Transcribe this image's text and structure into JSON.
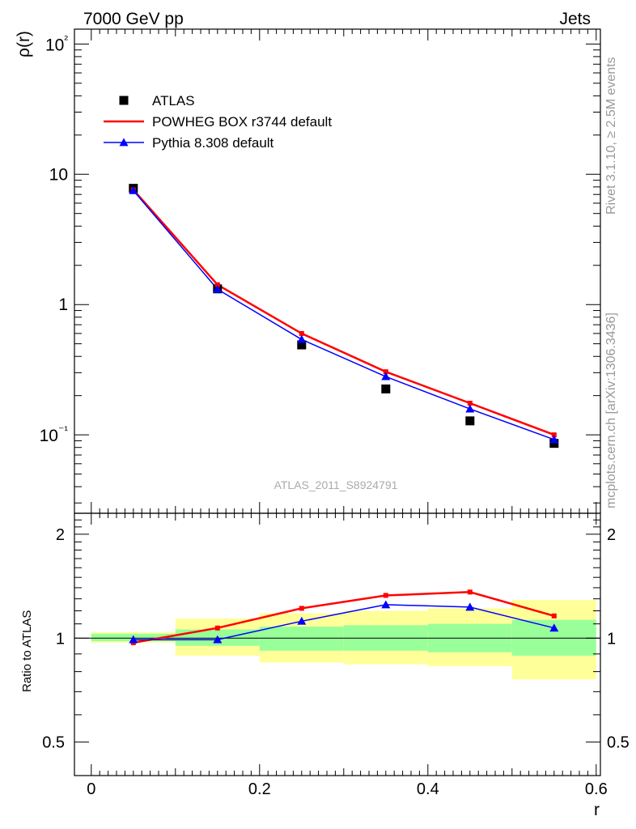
{
  "header": {
    "left_title": "7000 GeV pp",
    "right_title": "Jets"
  },
  "side_labels": {
    "rivet": "Rivet 3.1.10, ≥ 2.5M events",
    "mcplots": "mcplots.cern.ch [arXiv:1306.3436]"
  },
  "analysis_label": "ATLAS_2011_S8924791",
  "colors": {
    "atlas": "#000000",
    "powheg": "#ff0000",
    "pythia": "#0000ff",
    "band_inner": "#99ff99",
    "band_outer": "#ffff99"
  },
  "chart_data": [
    {
      "type": "line",
      "ylabel": "ρ(r)",
      "yscale": "log",
      "ylim": [
        0.025,
        130
      ],
      "xlim": [
        -0.02,
        0.605
      ],
      "y_tick_labels": [
        "10⁻¹",
        "1",
        "10",
        "10²"
      ],
      "legend_position": "top-left",
      "x": [
        0.05,
        0.15,
        0.25,
        0.35,
        0.45,
        0.55
      ],
      "series": [
        {
          "name": "ATLAS",
          "marker": "square",
          "values": [
            7.8,
            1.32,
            0.49,
            0.225,
            0.128,
            0.086
          ]
        },
        {
          "name": "POWHEG BOX r3744 default",
          "marker": "none",
          "values": [
            7.6,
            1.42,
            0.6,
            0.305,
            0.175,
            0.1
          ]
        },
        {
          "name": "Pythia 8.308 default",
          "marker": "triangle",
          "values": [
            7.5,
            1.31,
            0.54,
            0.28,
            0.158,
            0.092
          ]
        }
      ]
    },
    {
      "type": "line",
      "ylabel": "Ratio to ATLAS",
      "xlabel": "r",
      "yscale": "log",
      "ylim": [
        0.4,
        2.3
      ],
      "xlim": [
        -0.02,
        0.605
      ],
      "x_tick_labels": [
        "0",
        "0.2",
        "0.4",
        "0.6"
      ],
      "y_tick_labels": [
        "0.5",
        "1",
        "2"
      ],
      "reference_line": 1,
      "x": [
        0.05,
        0.15,
        0.25,
        0.35,
        0.45,
        0.55
      ],
      "series": [
        {
          "name": "POWHEG BOX r3744 default",
          "values": [
            0.97,
            1.07,
            1.22,
            1.33,
            1.36,
            1.16
          ]
        },
        {
          "name": "Pythia 8.308 default",
          "values": [
            0.99,
            0.99,
            1.12,
            1.25,
            1.23,
            1.07
          ]
        }
      ],
      "bands": [
        {
          "x": [
            0.0,
            0.1
          ],
          "inner": [
            0.98,
            1.03
          ],
          "outer": [
            0.97,
            1.04
          ]
        },
        {
          "x": [
            0.1,
            0.2
          ],
          "inner": [
            0.95,
            1.06
          ],
          "outer": [
            0.89,
            1.14
          ]
        },
        {
          "x": [
            0.2,
            0.3
          ],
          "inner": [
            0.92,
            1.08
          ],
          "outer": [
            0.85,
            1.18
          ]
        },
        {
          "x": [
            0.3,
            0.4
          ],
          "inner": [
            0.92,
            1.09
          ],
          "outer": [
            0.84,
            1.2
          ]
        },
        {
          "x": [
            0.4,
            0.5
          ],
          "inner": [
            0.91,
            1.1
          ],
          "outer": [
            0.83,
            1.22
          ]
        },
        {
          "x": [
            0.5,
            0.6
          ],
          "inner": [
            0.89,
            1.13
          ],
          "outer": [
            0.76,
            1.29
          ]
        }
      ]
    }
  ]
}
